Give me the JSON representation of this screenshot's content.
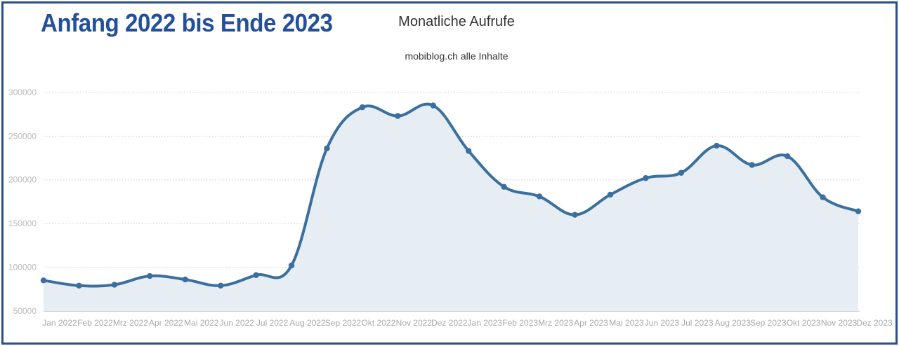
{
  "header": {
    "headline": "Anfang 2022 bis Ende 2023"
  },
  "chart_data": {
    "type": "area",
    "title": "Monatliche Aufrufe",
    "subtitle": "mobiblog.ch alle Inhalte",
    "xlabel": "",
    "ylabel": "",
    "ylim": [
      50000,
      300000
    ],
    "yticks": [
      300000,
      250000,
      200000,
      150000,
      100000,
      50000
    ],
    "grid": true,
    "categories": [
      "Jan 2022",
      "Feb 2022",
      "Mrz 2022",
      "Apr 2022",
      "Mai 2022",
      "Jun 2022",
      "Jul 2022",
      "Aug 2022",
      "Sep 2022",
      "Okt 2022",
      "Nov 2022",
      "Dez 2022",
      "Jan 2023",
      "Feb 2023",
      "Mrz 2023",
      "Apr 2023",
      "Mai 2023",
      "Jun 2023",
      "Jul 2023",
      "Aug 2023",
      "Sep 2023",
      "Okt 2023",
      "Nov 2023",
      "Dez 2023"
    ],
    "values": [
      85000,
      79000,
      80000,
      90000,
      86000,
      79000,
      91000,
      102000,
      236000,
      283000,
      273000,
      285000,
      233000,
      192000,
      181000,
      160000,
      183000,
      202000,
      208000,
      239000,
      217000,
      227000,
      180000,
      164000
    ],
    "colors": {
      "line": "#3a6f9f",
      "area": "#e6edf3",
      "grid": "#cccccc"
    }
  }
}
